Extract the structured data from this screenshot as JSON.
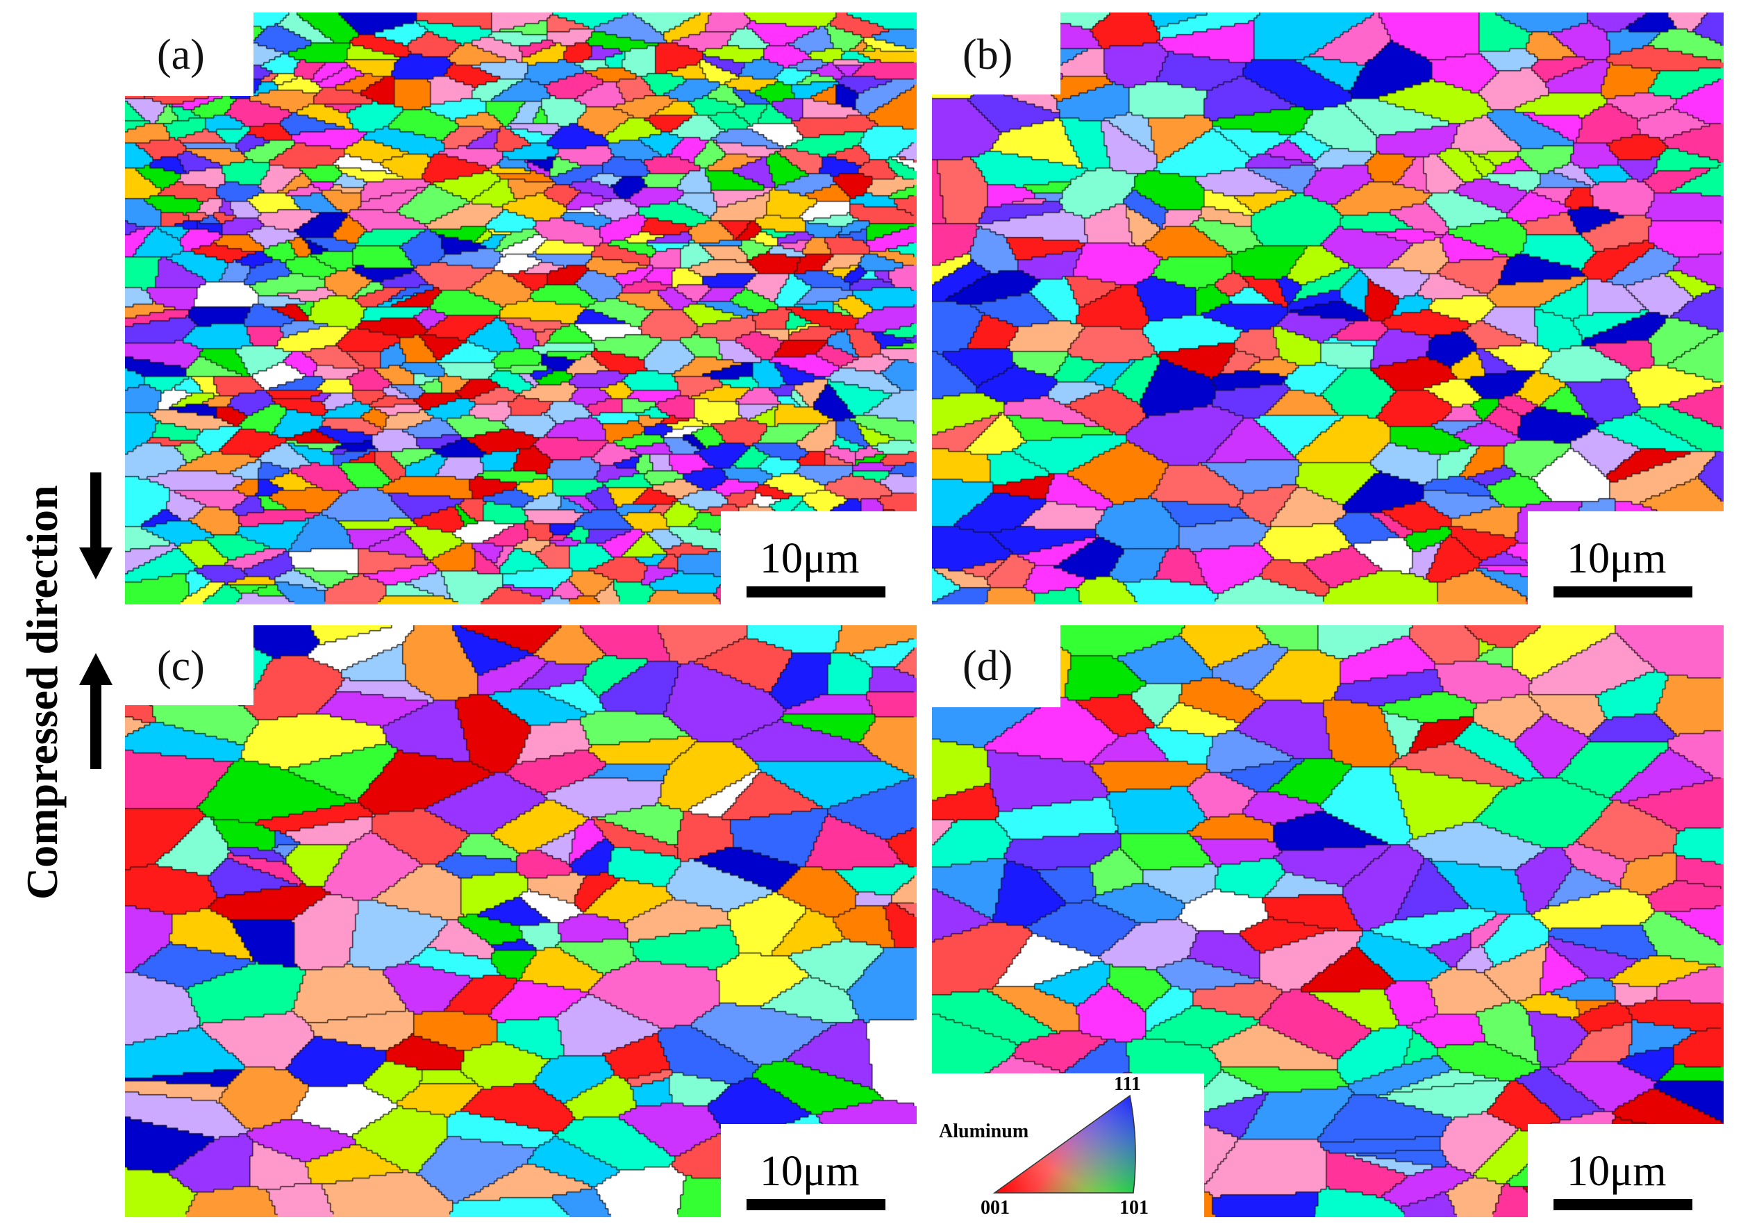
{
  "figure": {
    "side_label": "Compressed  direction",
    "panels": [
      {
        "id": "a",
        "label": "(a)",
        "scale": "10μm",
        "grain": "fine"
      },
      {
        "id": "b",
        "label": "(b)",
        "scale": "10μm",
        "grain": "medium"
      },
      {
        "id": "c",
        "label": "(c)",
        "scale": "10μm",
        "grain": "coarse"
      },
      {
        "id": "d",
        "label": "(d)",
        "scale": "10μm",
        "grain": "coarse"
      }
    ],
    "legend": {
      "material": "Aluminum",
      "corners": {
        "top": "111",
        "left": "001",
        "right": "101"
      },
      "colors": {
        "001": "#ff0000",
        "101": "#00ff00",
        "111": "#0000ff"
      }
    }
  }
}
